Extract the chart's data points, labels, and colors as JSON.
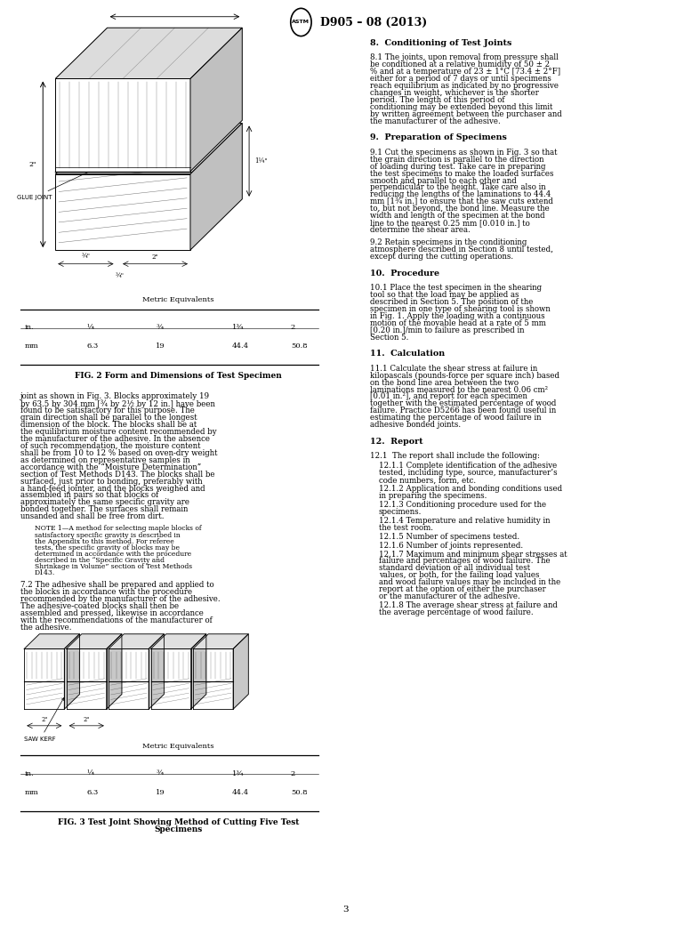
{
  "page_width": 7.78,
  "page_height": 10.41,
  "bg_color": "#ffffff",
  "header_title": "D905 – 08 (2013)",
  "red_color": "#cc0000",
  "black_color": "#000000",
  "section8_heading": "8.  Conditioning of Test Joints",
  "section8_text": "8.1  The joints, upon removal from pressure shall be conditioned at a relative humidity of 50 ± 2 % and at a temperature of 23 ± 1°C [73.4 ± 2°F] either for a period of 7 days or until specimens reach equilibrium as indicated by no progressive changes in weight, whichever is the shorter period. The length of this period of conditioning may be extended beyond this limit by written agreement between the purchaser and the manufacturer of the adhesive.",
  "section9_heading": "9.  Preparation of Specimens",
  "section9_1_text": "9.1  Cut the specimens as shown in Fig. 3 so that the grain direction is parallel to the direction of loading during test. Take care in preparing the test specimens to make the loaded surfaces smooth and parallel to each other and perpendicular to the height. Take care also in reducing the lengths of the laminations to 44.4 mm [1¾ in.] to ensure that the saw cuts extend to, but not beyond, the bond line. Measure the width and length of the specimen at the bond line to the nearest 0.25 mm [0.010 in.] to determine the shear area.",
  "section9_2_text": "9.2  Retain specimens in the conditioning atmosphere described in Section 8 until tested, except during the cutting operations.",
  "section10_heading": "10.  Procedure",
  "section10_text": "10.1  Place the test specimen in the shearing tool so that the load may be applied as described in Section 5. The position of the specimen in one type of shearing tool is shown in Fig. 1. Apply the loading with a continuous motion of the movable head at a rate of 5 mm [0.20 in.]/min to failure as prescribed in Section 5.",
  "section11_heading": "11.  Calculation",
  "section11_text": "11.1  Calculate the shear stress at failure in kilopascals (pounds-force per square inch) based on the bond line area between the two laminations measured to the nearest 0.06 cm² [0.01 in.²], and report for each specimen together with the estimated percentage of wood failure. Practice D5266 has been found useful in estimating the percentage of wood failure in adhesive bonded joints.",
  "section12_heading": "12.  Report",
  "section12_1_text": "12.1  The report shall include the following:",
  "section12_1_1": "12.1.1  Complete identification of the adhesive tested, including type, source, manufacturer’s code numbers, form, etc.",
  "section12_1_2": "12.1.2  Application and bonding conditions used in preparing the specimens.",
  "section12_1_3": "12.1.3  Conditioning procedure used for the specimens.",
  "section12_1_4": "12.1.4  Temperature and relative humidity in the test room.",
  "section12_1_5": "12.1.5  Number of specimens tested.",
  "section12_1_6": "12.1.6  Number of joints represented.",
  "section12_1_7": "12.1.7  Maximum and minimum shear stresses at failure and percentages of wood failure. The standard deviation or all individual test values, or both, for the failing load values and wood failure values may be included in the report at the option of either the purchaser or the manufacturer of the adhesive.",
  "section12_1_8": "12.1.8  The average shear stress at failure and the average percentage of wood failure.",
  "fig2_caption": "FIG. 2 Form and Dimensions of Test Specimen",
  "fig3_caption_line1": "FIG. 3 Test Joint Showing Method of Cutting Five Test",
  "fig3_caption_line2": "Specimens",
  "metric_equiv": "Metric Equivalents",
  "col_labels_h": [
    "in.",
    "¼",
    "¾",
    "1¾",
    "2"
  ],
  "col_labels_r": [
    "mm",
    "6.3",
    "19",
    "44.4",
    "50.8"
  ],
  "left_body_text": "joint as shown in Fig. 3. Blocks approximately 19 by 63.5 by 304 mm [¾ by 2½ by 12 in.] have been found to be satisfactory for this purpose. The grain direction shall be parallel to the longest dimension of the block. The blocks shall be at the equilibrium moisture content recommended by the manufacturer of the adhesive. In the absence of such recommendation, the moisture content shall be from 10 to 12 % based on oven-dry weight as determined on representative samples in accordance with the “Moisture Determination” section of Test Methods D143. The blocks shall be surfaced, just prior to bonding, preferably with a hand-feed jointer, and the blocks weighed and assembled in pairs so that blocks of approximately the same specific gravity are bonded together. The surfaces shall remain unsanded and shall be free from dirt.",
  "note_text": "NOTE 1—A method for selecting maple blocks of satisfactory specific gravity is described in the Appendix to this method. For referee tests, the specific gravity of blocks may be determined in accordance with the procedure described in the “Specific Gravity and Shrinkage in Volume” section of Test Methods D143.",
  "section7_2_text": "7.2  The adhesive shall be prepared and applied to the blocks in accordance with the procedure recommended by the manufacturer of the adhesive. The adhesive-coated blocks shall then be assembled and pressed, likewise in accordance with the recommendations of the manufacturer of the adhesive.",
  "page_number": "3"
}
